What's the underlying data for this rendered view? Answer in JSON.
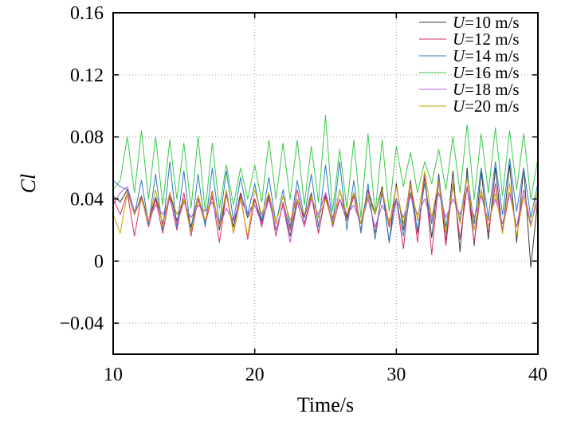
{
  "chart_data": {
    "type": "line",
    "xlabel": "Time/s",
    "ylabel": "Cl",
    "xlim": [
      10,
      40
    ],
    "ylim": [
      -0.06,
      0.16
    ],
    "xticks": [
      10,
      20,
      30,
      40
    ],
    "xtick_labels": [
      "10",
      "20",
      "30",
      "40"
    ],
    "yticks": [
      -0.04,
      0,
      0.04,
      0.08,
      0.12,
      0.16
    ],
    "ytick_labels": [
      "−0.04",
      "0",
      "0.04",
      "0.08",
      "0.12",
      "0.16"
    ],
    "grid": true,
    "legend_position": "top-right",
    "series": [
      {
        "name": "U=10 m/s",
        "legend_var": "U",
        "legend_rest": "=10 m/s",
        "color": "#3a3a3a",
        "x": [
          10,
          10.5,
          11,
          11.5,
          12,
          12.5,
          13,
          13.5,
          14,
          14.5,
          15,
          15.5,
          16,
          16.5,
          17,
          17.5,
          18,
          18.5,
          19,
          19.5,
          20,
          20.5,
          21,
          21.5,
          22,
          22.5,
          23,
          23.5,
          24,
          24.5,
          25,
          25.5,
          26,
          26.5,
          27,
          27.5,
          28,
          28.5,
          29,
          29.5,
          30,
          30.5,
          31,
          31.5,
          32,
          32.5,
          33,
          33.5,
          34,
          34.5,
          35,
          35.5,
          36,
          36.5,
          37,
          37.5,
          38,
          38.5,
          39,
          39.5,
          40
        ],
        "values": [
          0.042,
          0.038,
          0.046,
          0.03,
          0.042,
          0.026,
          0.041,
          0.024,
          0.044,
          0.026,
          0.04,
          0.022,
          0.042,
          0.025,
          0.045,
          0.02,
          0.043,
          0.022,
          0.044,
          0.028,
          0.04,
          0.025,
          0.042,
          0.02,
          0.036,
          0.016,
          0.04,
          0.028,
          0.044,
          0.018,
          0.042,
          0.024,
          0.046,
          0.028,
          0.044,
          0.024,
          0.046,
          0.03,
          0.048,
          0.012,
          0.05,
          0.02,
          0.052,
          0.018,
          0.054,
          0.015,
          0.056,
          0.012,
          0.058,
          0.006,
          0.06,
          0.01,
          0.058,
          0.014,
          0.06,
          0.018,
          0.062,
          0.012,
          0.06,
          -0.004,
          0.04
        ]
      },
      {
        "name": "U=12 m/s",
        "legend_var": "U",
        "legend_rest": "=12 m/s",
        "color": "#d42e6e",
        "x": [
          10,
          10.5,
          11,
          11.5,
          12,
          12.5,
          13,
          13.5,
          14,
          14.5,
          15,
          15.5,
          16,
          16.5,
          17,
          17.5,
          18,
          18.5,
          19,
          19.5,
          20,
          20.5,
          21,
          21.5,
          22,
          22.5,
          23,
          23.5,
          24,
          24.5,
          25,
          25.5,
          26,
          26.5,
          27,
          27.5,
          28,
          28.5,
          29,
          29.5,
          30,
          30.5,
          31,
          31.5,
          32,
          32.5,
          33,
          33.5,
          34,
          34.5,
          35,
          35.5,
          36,
          36.5,
          37,
          37.5,
          38,
          38.5,
          39,
          39.5,
          40
        ],
        "values": [
          0.04,
          0.03,
          0.044,
          0.016,
          0.042,
          0.022,
          0.04,
          0.018,
          0.042,
          0.02,
          0.044,
          0.016,
          0.04,
          0.024,
          0.042,
          0.012,
          0.044,
          0.018,
          0.042,
          0.014,
          0.04,
          0.022,
          0.044,
          0.016,
          0.038,
          0.02,
          0.046,
          0.024,
          0.042,
          0.018,
          0.044,
          0.022,
          0.04,
          0.026,
          0.042,
          0.02,
          0.046,
          0.018,
          0.044,
          0.022,
          0.04,
          0.008,
          0.05,
          0.012,
          0.056,
          0.004,
          0.052,
          0.01,
          0.05,
          0.014,
          0.048,
          0.012,
          0.046,
          0.018,
          0.05,
          0.02,
          0.044,
          0.022,
          0.042,
          0.024,
          0.04
        ]
      },
      {
        "name": "U=14 m/s",
        "legend_var": "U",
        "legend_rest": "=14 m/s",
        "color": "#2c7bc0",
        "x": [
          10,
          10.5,
          11,
          11.5,
          12,
          12.5,
          13,
          13.5,
          14,
          14.5,
          15,
          15.5,
          16,
          16.5,
          17,
          17.5,
          18,
          18.5,
          19,
          19.5,
          20,
          20.5,
          21,
          21.5,
          22,
          22.5,
          23,
          23.5,
          24,
          24.5,
          25,
          25.5,
          26,
          26.5,
          27,
          27.5,
          28,
          28.5,
          29,
          29.5,
          30,
          30.5,
          31,
          31.5,
          32,
          32.5,
          33,
          33.5,
          34,
          34.5,
          35,
          35.5,
          36,
          36.5,
          37,
          37.5,
          38,
          38.5,
          39,
          39.5,
          40
        ],
        "values": [
          0.052,
          0.048,
          0.046,
          0.03,
          0.052,
          0.024,
          0.056,
          0.02,
          0.064,
          0.022,
          0.058,
          0.018,
          0.056,
          0.022,
          0.06,
          0.024,
          0.058,
          0.026,
          0.054,
          0.03,
          0.05,
          0.026,
          0.054,
          0.024,
          0.046,
          0.022,
          0.052,
          0.028,
          0.056,
          0.022,
          0.062,
          0.024,
          0.064,
          0.02,
          0.052,
          0.018,
          0.05,
          0.014,
          0.046,
          0.012,
          0.04,
          0.016,
          0.044,
          0.02,
          0.05,
          0.024,
          0.054,
          0.022,
          0.048,
          0.026,
          0.056,
          0.024,
          0.06,
          0.028,
          0.064,
          0.03,
          0.066,
          0.032,
          0.06,
          0.028,
          0.05
        ]
      },
      {
        "name": "U=16 m/s",
        "legend_var": "U",
        "legend_rest": "=16 m/s",
        "color": "#3bc94a",
        "x": [
          10,
          10.5,
          11,
          11.5,
          12,
          12.5,
          13,
          13.5,
          14,
          14.5,
          15,
          15.5,
          16,
          16.5,
          17,
          17.5,
          18,
          18.5,
          19,
          19.5,
          20,
          20.5,
          21,
          21.5,
          22,
          22.5,
          23,
          23.5,
          24,
          24.5,
          25,
          25.5,
          26,
          26.5,
          27,
          27.5,
          28,
          28.5,
          29,
          29.5,
          30,
          30.5,
          31,
          31.5,
          32,
          32.5,
          33,
          33.5,
          34,
          34.5,
          35,
          35.5,
          36,
          36.5,
          37,
          37.5,
          38,
          38.5,
          39,
          39.5,
          40
        ],
        "values": [
          0.046,
          0.052,
          0.08,
          0.044,
          0.084,
          0.04,
          0.08,
          0.036,
          0.078,
          0.04,
          0.076,
          0.034,
          0.08,
          0.032,
          0.076,
          0.034,
          0.062,
          0.036,
          0.06,
          0.04,
          0.062,
          0.038,
          0.078,
          0.04,
          0.076,
          0.04,
          0.078,
          0.036,
          0.074,
          0.038,
          0.094,
          0.032,
          0.072,
          0.034,
          0.078,
          0.028,
          0.082,
          0.03,
          0.078,
          0.032,
          0.074,
          0.048,
          0.07,
          0.044,
          0.064,
          0.05,
          0.072,
          0.046,
          0.08,
          0.044,
          0.088,
          0.04,
          0.082,
          0.044,
          0.086,
          0.042,
          0.084,
          0.046,
          0.082,
          0.04,
          0.066
        ]
      },
      {
        "name": "U=18 m/s",
        "legend_var": "U",
        "legend_rest": "=18 m/s",
        "color": "#b557d6",
        "x": [
          10,
          10.5,
          11,
          11.5,
          12,
          12.5,
          13,
          13.5,
          14,
          14.5,
          15,
          15.5,
          16,
          16.5,
          17,
          17.5,
          18,
          18.5,
          19,
          19.5,
          20,
          20.5,
          21,
          21.5,
          22,
          22.5,
          23,
          23.5,
          24,
          24.5,
          25,
          25.5,
          26,
          26.5,
          27,
          27.5,
          28,
          28.5,
          29,
          29.5,
          30,
          30.5,
          31,
          31.5,
          32,
          32.5,
          33,
          33.5,
          34,
          34.5,
          35,
          35.5,
          36,
          36.5,
          37,
          37.5,
          38,
          38.5,
          39,
          39.5,
          40
        ],
        "values": [
          0.036,
          0.044,
          0.048,
          0.032,
          0.04,
          0.026,
          0.036,
          0.03,
          0.04,
          0.024,
          0.038,
          0.028,
          0.036,
          0.032,
          0.038,
          0.022,
          0.034,
          0.026,
          0.04,
          0.03,
          0.036,
          0.024,
          0.04,
          0.02,
          0.036,
          0.012,
          0.038,
          0.022,
          0.04,
          0.03,
          0.044,
          0.028,
          0.04,
          0.03,
          0.036,
          0.024,
          0.04,
          0.022,
          0.036,
          0.026,
          0.04,
          0.028,
          0.042,
          0.03,
          0.04,
          0.026,
          0.044,
          0.028,
          0.04,
          0.03,
          0.046,
          0.028,
          0.042,
          0.026,
          0.04,
          0.024,
          0.044,
          0.022,
          0.046,
          0.024,
          0.04
        ]
      },
      {
        "name": "U=20 m/s",
        "legend_var": "U",
        "legend_rest": "=20 m/s",
        "color": "#c8a400",
        "x": [
          10,
          10.5,
          11,
          11.5,
          12,
          12.5,
          13,
          13.5,
          14,
          14.5,
          15,
          15.5,
          16,
          16.5,
          17,
          17.5,
          18,
          18.5,
          19,
          19.5,
          20,
          20.5,
          21,
          21.5,
          22,
          22.5,
          23,
          23.5,
          24,
          24.5,
          25,
          25.5,
          26,
          26.5,
          27,
          27.5,
          28,
          28.5,
          29,
          29.5,
          30,
          30.5,
          31,
          31.5,
          32,
          32.5,
          33,
          33.5,
          34,
          34.5,
          35,
          35.5,
          36,
          36.5,
          37,
          37.5,
          38,
          38.5,
          39,
          39.5,
          40
        ],
        "values": [
          0.03,
          0.018,
          0.044,
          0.03,
          0.04,
          0.026,
          0.046,
          0.022,
          0.044,
          0.03,
          0.04,
          0.018,
          0.042,
          0.026,
          0.044,
          0.022,
          0.046,
          0.018,
          0.04,
          0.016,
          0.046,
          0.03,
          0.044,
          0.024,
          0.042,
          0.026,
          0.04,
          0.03,
          0.042,
          0.028,
          0.04,
          0.024,
          0.046,
          0.03,
          0.044,
          0.024,
          0.042,
          0.03,
          0.046,
          0.024,
          0.048,
          0.024,
          0.05,
          0.026,
          0.058,
          0.028,
          0.052,
          0.018,
          0.05,
          0.024,
          0.054,
          0.02,
          0.046,
          0.022,
          0.044,
          0.018,
          0.05,
          0.016,
          0.042,
          0.022,
          0.046
        ]
      }
    ]
  }
}
